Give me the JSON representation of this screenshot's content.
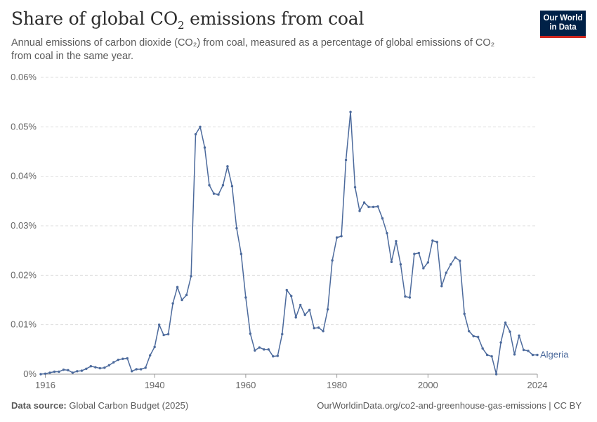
{
  "header": {
    "title_main": "Share of global CO",
    "title_sub": "2",
    "title_end": " emissions from coal",
    "subtitle_line1": "Annual emissions of carbon dioxide (CO₂) from coal, measured as a percentage of global emissions of CO₂",
    "subtitle_line2": "from coal in the same year."
  },
  "logo": {
    "line1": "Our World",
    "line2": "in Data"
  },
  "footer": {
    "source_label": "Data source:",
    "source_value": " Global Carbon Budget (2025)",
    "url": "OurWorldinData.org/co2-and-greenhouse-gas-emissions | CC BY"
  },
  "colors": {
    "series": "#4c6a9c",
    "grid": "#dddddd",
    "logo_bg": "#002147",
    "logo_accent": "#ce261e"
  },
  "chart_data": {
    "type": "line",
    "title": "Share of global CO₂ emissions from coal",
    "xlabel": "",
    "ylabel": "",
    "xlim": [
      1915,
      2024
    ],
    "ylim": [
      0,
      0.06
    ],
    "x_ticks": [
      1916,
      1940,
      1960,
      1980,
      2000,
      2024
    ],
    "y_ticks": [
      0,
      0.01,
      0.02,
      0.03,
      0.04,
      0.05,
      0.06
    ],
    "y_tick_labels": [
      "0%",
      "0.01%",
      "0.02%",
      "0.03%",
      "0.04%",
      "0.05%",
      "0.06%"
    ],
    "grid": true,
    "legend": "end-label",
    "series": [
      {
        "name": "Algeria",
        "x": [
          1915,
          1916,
          1917,
          1918,
          1919,
          1920,
          1921,
          1922,
          1923,
          1924,
          1925,
          1926,
          1927,
          1928,
          1929,
          1930,
          1931,
          1932,
          1933,
          1934,
          1935,
          1936,
          1937,
          1938,
          1939,
          1940,
          1941,
          1942,
          1943,
          1944,
          1945,
          1946,
          1947,
          1948,
          1949,
          1950,
          1951,
          1952,
          1953,
          1954,
          1955,
          1956,
          1957,
          1958,
          1959,
          1960,
          1961,
          1962,
          1963,
          1964,
          1965,
          1966,
          1967,
          1968,
          1969,
          1970,
          1971,
          1972,
          1973,
          1974,
          1975,
          1976,
          1977,
          1978,
          1979,
          1980,
          1981,
          1982,
          1983,
          1984,
          1985,
          1986,
          1987,
          1988,
          1989,
          1990,
          1991,
          1992,
          1993,
          1994,
          1995,
          1996,
          1997,
          1998,
          1999,
          2000,
          2001,
          2002,
          2003,
          2004,
          2005,
          2006,
          2007,
          2008,
          2009,
          2010,
          2011,
          2012,
          2013,
          2014,
          2015,
          2016,
          2017,
          2018,
          2019,
          2020,
          2021,
          2022,
          2023,
          2024
        ],
        "values": [
          0,
          0.0001,
          0.0003,
          0.0005,
          0.0005,
          0.0009,
          0.0008,
          0.0003,
          0.0006,
          0.0007,
          0.0011,
          0.0016,
          0.0014,
          0.0012,
          0.0013,
          0.0018,
          0.0024,
          0.0029,
          0.0031,
          0.0032,
          0.0006,
          0.001,
          0.001,
          0.0013,
          0.0038,
          0.0055,
          0.01,
          0.0079,
          0.0081,
          0.0143,
          0.0176,
          0.015,
          0.016,
          0.0198,
          0.0485,
          0.05,
          0.0458,
          0.0382,
          0.0365,
          0.0363,
          0.0382,
          0.042,
          0.038,
          0.0295,
          0.0243,
          0.0155,
          0.0082,
          0.0048,
          0.0054,
          0.005,
          0.005,
          0.0036,
          0.0037,
          0.0081,
          0.017,
          0.0158,
          0.0115,
          0.014,
          0.012,
          0.013,
          0.0093,
          0.0094,
          0.0087,
          0.0131,
          0.023,
          0.0276,
          0.0279,
          0.0433,
          0.053,
          0.0378,
          0.033,
          0.0347,
          0.0338,
          0.0338,
          0.0339,
          0.0315,
          0.0285,
          0.0227,
          0.0269,
          0.0222,
          0.0157,
          0.0155,
          0.0243,
          0.0245,
          0.0214,
          0.0226,
          0.027,
          0.0267,
          0.0178,
          0.0205,
          0.0222,
          0.0236,
          0.0229,
          0.0122,
          0.0087,
          0.0077,
          0.0075,
          0.0052,
          0.0039,
          0.0036,
          0,
          0.0064,
          0.0104,
          0.0086,
          0.004,
          0.0078,
          0.0049,
          0.0047,
          0.0039,
          0.0039
        ]
      }
    ]
  }
}
